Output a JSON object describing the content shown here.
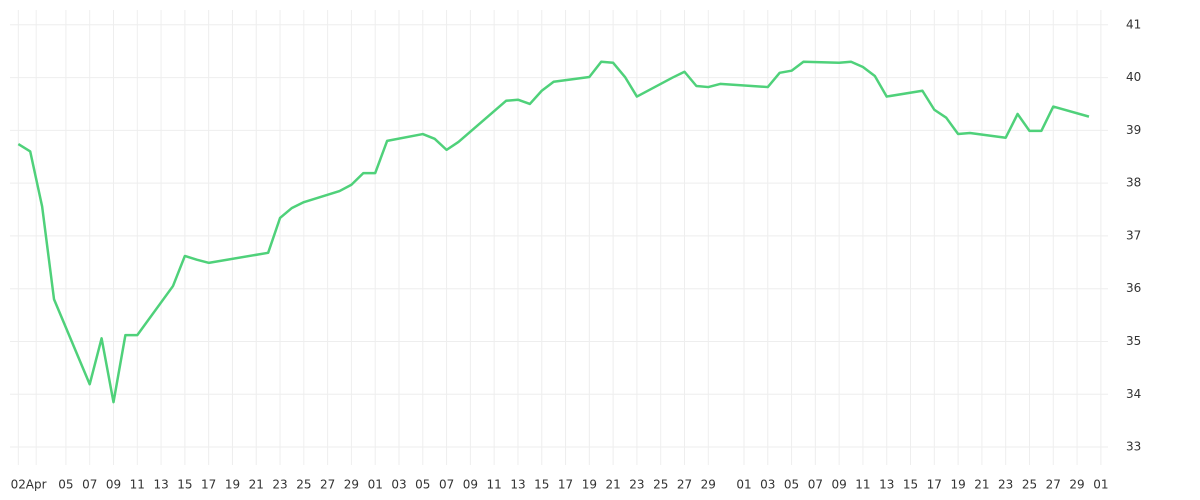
{
  "chart_data": {
    "type": "line",
    "x": [
      0,
      1,
      2,
      3,
      6,
      7,
      8,
      9,
      10,
      13,
      14,
      15,
      16,
      21,
      22,
      23,
      24,
      27,
      28,
      29,
      30,
      31,
      34,
      35,
      36,
      37,
      41,
      42,
      43,
      44,
      45,
      48,
      49,
      50,
      51,
      52,
      55,
      56,
      57,
      58,
      59,
      63,
      64,
      65,
      66,
      69,
      70,
      71,
      72,
      73,
      76,
      77,
      78,
      79,
      80,
      83,
      84,
      85,
      86,
      87,
      90
    ],
    "series": [
      {
        "color": "#4fd17a",
        "values": [
          38.74,
          38.6,
          37.56,
          35.8,
          34.19,
          35.06,
          33.85,
          35.12,
          35.12,
          36.05,
          36.62,
          36.55,
          36.49,
          36.68,
          37.34,
          37.53,
          37.64,
          37.85,
          37.97,
          38.19,
          38.19,
          38.8,
          38.93,
          38.84,
          38.63,
          38.78,
          39.56,
          39.58,
          39.5,
          39.75,
          39.92,
          40.01,
          40.3,
          40.28,
          40.01,
          39.64,
          40.0,
          40.11,
          39.84,
          39.82,
          39.88,
          39.82,
          40.09,
          40.13,
          40.3,
          40.28,
          40.3,
          40.2,
          40.03,
          39.64,
          39.75,
          39.39,
          39.24,
          38.93,
          38.95,
          38.86,
          39.31,
          38.99,
          38.99,
          39.45,
          39.26
        ]
      }
    ],
    "xlim": [
      -0.7,
      91.6
    ],
    "ylim": [
      32.66,
      41.28
    ],
    "yticks": [
      33,
      34,
      35,
      36,
      37,
      38,
      39,
      40,
      41
    ],
    "xticks": [
      {
        "value": 0,
        "label": "02"
      },
      {
        "value": 1.5,
        "label": "Apr"
      },
      {
        "value": 4,
        "label": "05"
      },
      {
        "value": 6,
        "label": "07"
      },
      {
        "value": 8,
        "label": "09"
      },
      {
        "value": 10,
        "label": "11"
      },
      {
        "value": 12,
        "label": "13"
      },
      {
        "value": 14,
        "label": "15"
      },
      {
        "value": 16,
        "label": "17"
      },
      {
        "value": 18,
        "label": "19"
      },
      {
        "value": 20,
        "label": "21"
      },
      {
        "value": 22,
        "label": "23"
      },
      {
        "value": 24,
        "label": "25"
      },
      {
        "value": 26,
        "label": "27"
      },
      {
        "value": 28,
        "label": "29"
      },
      {
        "value": 30,
        "label": "01"
      },
      {
        "value": 32,
        "label": "03"
      },
      {
        "value": 34,
        "label": "05"
      },
      {
        "value": 36,
        "label": "07"
      },
      {
        "value": 38,
        "label": "09"
      },
      {
        "value": 40,
        "label": "11"
      },
      {
        "value": 42,
        "label": "13"
      },
      {
        "value": 44,
        "label": "15"
      },
      {
        "value": 46,
        "label": "17"
      },
      {
        "value": 48,
        "label": "19"
      },
      {
        "value": 50,
        "label": "21"
      },
      {
        "value": 52,
        "label": "23"
      },
      {
        "value": 54,
        "label": "25"
      },
      {
        "value": 56,
        "label": "27"
      },
      {
        "value": 58,
        "label": "29"
      },
      {
        "value": 61,
        "label": "01"
      },
      {
        "value": 63,
        "label": "03"
      },
      {
        "value": 65,
        "label": "05"
      },
      {
        "value": 67,
        "label": "07"
      },
      {
        "value": 69,
        "label": "09"
      },
      {
        "value": 71,
        "label": "11"
      },
      {
        "value": 73,
        "label": "13"
      },
      {
        "value": 75,
        "label": "15"
      },
      {
        "value": 77,
        "label": "17"
      },
      {
        "value": 79,
        "label": "19"
      },
      {
        "value": 81,
        "label": "21"
      },
      {
        "value": 83,
        "label": "23"
      },
      {
        "value": 85,
        "label": "25"
      },
      {
        "value": 87,
        "label": "27"
      },
      {
        "value": 89,
        "label": "29"
      },
      {
        "value": 91,
        "label": "01"
      }
    ],
    "grid": true
  }
}
